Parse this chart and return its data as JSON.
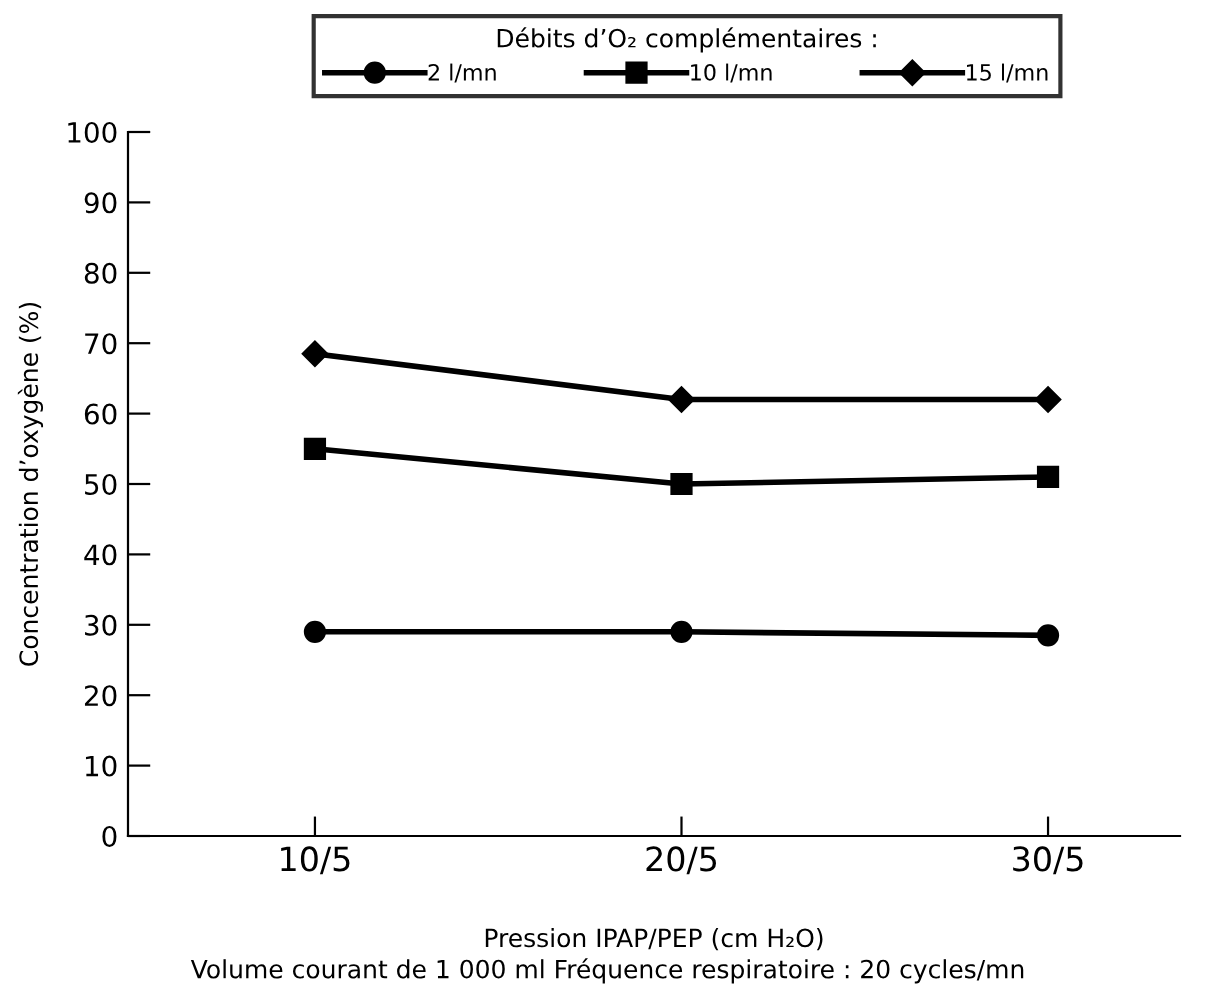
{
  "chart_data": {
    "type": "line",
    "categories": [
      "10/5",
      "20/5",
      "30/5"
    ],
    "series": [
      {
        "name": "2 l/mn",
        "color": "#000000",
        "marker": "circle",
        "values": [
          29,
          29,
          28.5
        ]
      },
      {
        "name": "10 l/mn",
        "color": "#000000",
        "marker": "square",
        "values": [
          55,
          50,
          51
        ]
      },
      {
        "name": "15 l/mn",
        "color": "#000000",
        "marker": "diamond",
        "values": [
          68.5,
          62,
          62
        ]
      }
    ],
    "legend_title": "Débits d’O₂ complémentaires :",
    "legend": "top",
    "xlabel": "Pression IPAP/PEP (cm H₂O)",
    "ylabel": "Concentration d’oxygène (%)",
    "annotations": [
      "Volume courant de 1 000 ml Fréquence respiratoire : 20 cycles/mn"
    ],
    "ylim": [
      0,
      100
    ],
    "yticks": [
      0,
      10,
      20,
      30,
      40,
      50,
      60,
      70,
      80,
      90,
      100
    ],
    "grid": false,
    "line_style": "solid"
  }
}
